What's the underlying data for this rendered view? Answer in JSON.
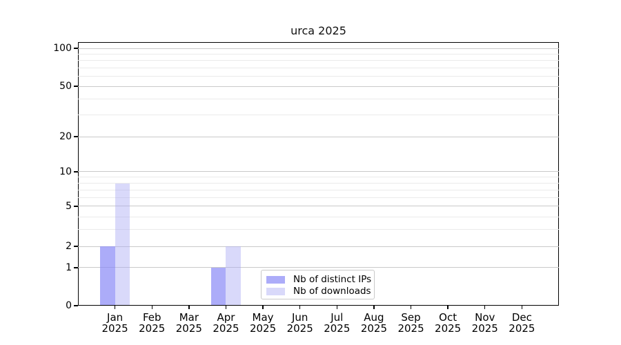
{
  "chart_data": {
    "type": "bar",
    "title": "urca 2025",
    "categories": [
      "Jan",
      "Feb",
      "Mar",
      "Apr",
      "May",
      "Jun",
      "Jul",
      "Aug",
      "Sep",
      "Oct",
      "Nov",
      "Dec"
    ],
    "category_year": "2025",
    "series": [
      {
        "name": "Nb of distinct IPs",
        "color": "rgba(132,132,246,0.68)",
        "values": [
          2,
          0,
          0,
          1,
          0,
          0,
          0,
          0,
          0,
          0,
          0,
          0
        ]
      },
      {
        "name": "Nb of downloads",
        "color": "rgba(170,170,245,0.45)",
        "values": [
          8,
          0,
          0,
          2,
          0,
          0,
          0,
          0,
          0,
          0,
          0,
          0
        ]
      }
    ],
    "xlabel": "",
    "ylabel": "",
    "ylim": [
      0,
      110
    ],
    "yticks": [
      100,
      50,
      20,
      10,
      5,
      2,
      1,
      0
    ],
    "y_minor_ticks": [
      3,
      4,
      6,
      7,
      8,
      9,
      30,
      40,
      60,
      70,
      80,
      90
    ],
    "yscale_anchors": [
      [
        0,
        0.0
      ],
      [
        1,
        0.144
      ],
      [
        2,
        0.225
      ],
      [
        5,
        0.377
      ],
      [
        10,
        0.508
      ],
      [
        20,
        0.641
      ],
      [
        50,
        0.832
      ],
      [
        100,
        0.976
      ]
    ],
    "grid": {
      "major_color": "#c9c9c9",
      "minor_color": "#eaeaea",
      "visible": true
    },
    "axis": {
      "spine_color": "#000000",
      "text_color": "#000000"
    },
    "legend": {
      "position": "lower center"
    }
  }
}
